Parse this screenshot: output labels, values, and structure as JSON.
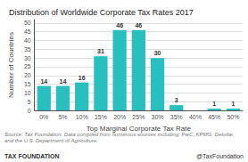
{
  "chart_data": {
    "type": "bar",
    "title": "Distribution of Worldwide Corporate Tax Rates 2017",
    "xlabel": "Top Marginal Corporate Tax Rate",
    "ylabel": "Number of Countries",
    "categories": [
      "0%",
      "5%",
      "10%",
      "15%",
      "20%",
      "25%",
      "30%",
      "35%",
      "40%",
      "45%",
      "50%"
    ],
    "values": [
      14,
      14,
      16,
      31,
      46,
      46,
      30,
      3,
      0,
      1,
      1
    ],
    "data_labels": true,
    "value_labels": [
      "14",
      "14",
      "16",
      "31",
      "46",
      "46",
      "30",
      "3",
      null,
      "1",
      "1"
    ],
    "color": "#2abfbf",
    "ylim": [
      0,
      52
    ],
    "yticks": [
      0,
      5,
      10,
      15,
      20,
      25,
      30,
      35,
      40,
      45,
      50
    ],
    "grid": true,
    "source": "Source: Tax Foundation. Data compiled from numerous sources including: PwC, KPMG, Deloitte, and the U.S. Department of Agriculture.",
    "footer_left": "TAX FOUNDATION",
    "footer_right": "@TaxFoundation"
  }
}
